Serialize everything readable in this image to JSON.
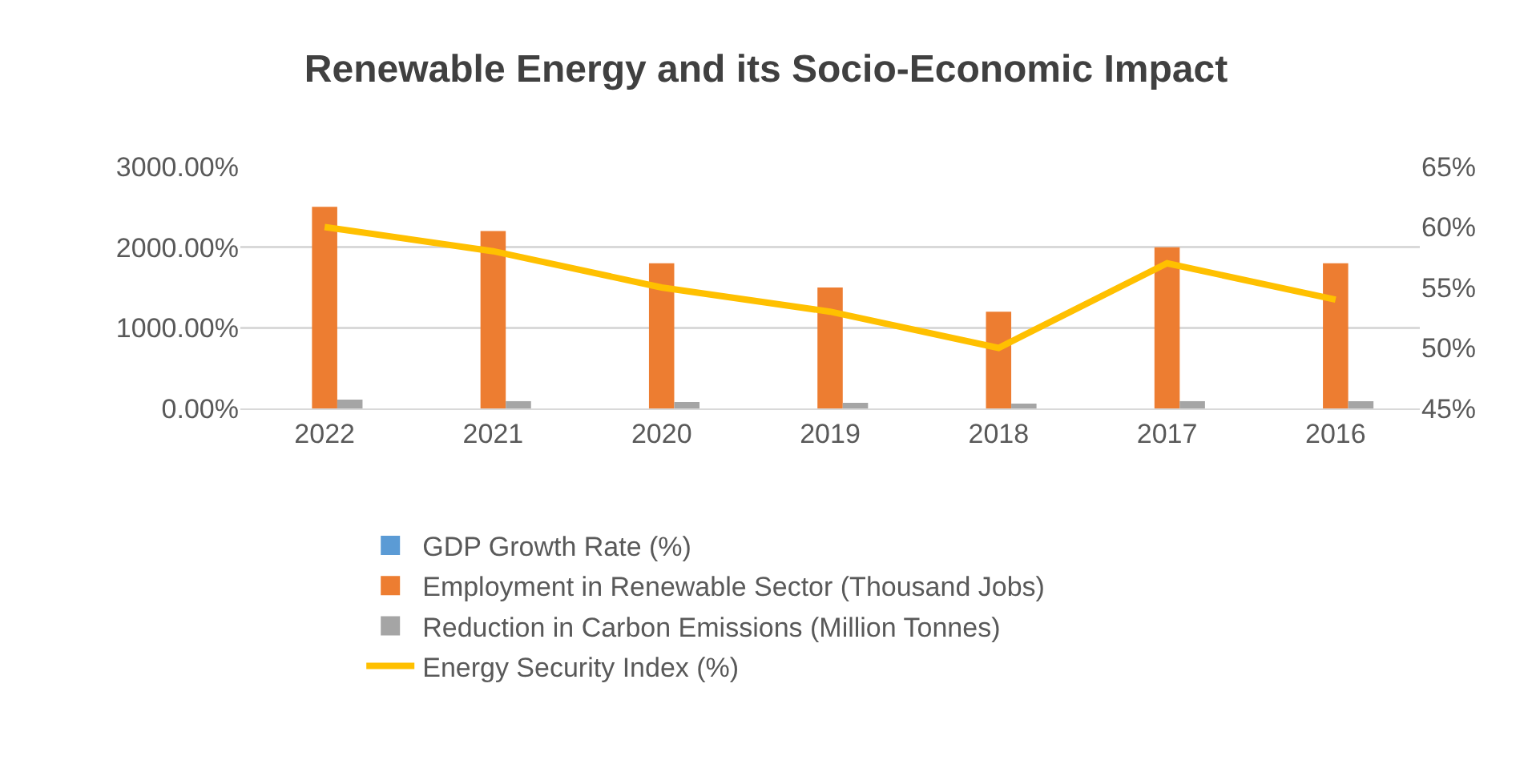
{
  "chart_data": {
    "type": "bar",
    "title": "Renewable Energy and its Socio-Economic Impact",
    "categories": [
      "2022",
      "2021",
      "2020",
      "2019",
      "2018",
      "2017",
      "2016"
    ],
    "series": [
      {
        "name": "GDP Growth Rate (%)",
        "color": "#5b9bd5",
        "values": [
          null,
          null,
          null,
          null,
          null,
          null,
          null
        ]
      },
      {
        "name": "Employment in Renewable Sector (Thousand Jobs)",
        "color": "#ed7d31",
        "values": [
          2500,
          2200,
          1800,
          1500,
          1200,
          2000,
          1800
        ]
      },
      {
        "name": "Reduction in Carbon Emissions (Million Tonnes)",
        "color": "#a5a5a5",
        "values": [
          110,
          90,
          80,
          70,
          60,
          90,
          90
        ]
      },
      {
        "name": "Energy Security Index (%)",
        "type": "line",
        "axis": "y2",
        "color": "#ffc000",
        "values": [
          60,
          58,
          55,
          53,
          50,
          57,
          54
        ]
      }
    ],
    "ylim": [
      0,
      3000
    ],
    "yticks": [
      {
        "value": 0,
        "label": "0.00%"
      },
      {
        "value": 1000,
        "label": "1000.00%"
      },
      {
        "value": 2000,
        "label": "2000.00%"
      },
      {
        "value": 3000,
        "label": "3000.00%"
      }
    ],
    "y2lim": [
      45,
      65
    ],
    "y2ticks": [
      {
        "value": 45,
        "label": "45%"
      },
      {
        "value": 50,
        "label": "50%"
      },
      {
        "value": 55,
        "label": "55%"
      },
      {
        "value": 60,
        "label": "60%"
      },
      {
        "value": 65,
        "label": "65%"
      }
    ],
    "grid": "y",
    "legend": "bottom",
    "marker": "none",
    "line_style": "solid"
  }
}
